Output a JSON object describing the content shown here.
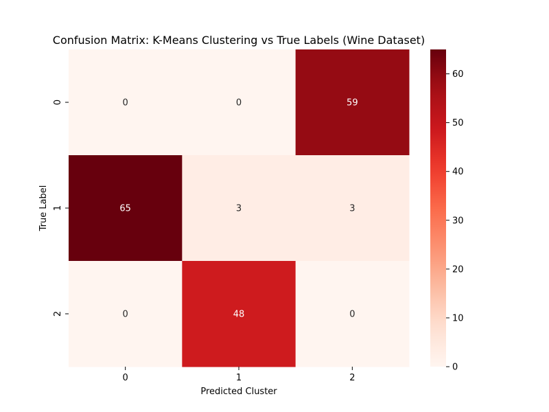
{
  "chart_data": {
    "type": "heatmap",
    "title": "Confusion Matrix: K-Means Clustering vs True Labels (Wine Dataset)",
    "xlabel": "Predicted Cluster",
    "ylabel": "True Label",
    "x_categories": [
      "0",
      "1",
      "2"
    ],
    "y_categories": [
      "0",
      "1",
      "2"
    ],
    "values": [
      [
        0,
        0,
        59
      ],
      [
        65,
        3,
        3
      ],
      [
        0,
        48,
        0
      ]
    ],
    "colormap": "Reds",
    "colorbar_ticks": [
      0,
      10,
      20,
      30,
      40,
      50,
      60
    ],
    "colorbar_range": [
      0,
      65
    ]
  }
}
